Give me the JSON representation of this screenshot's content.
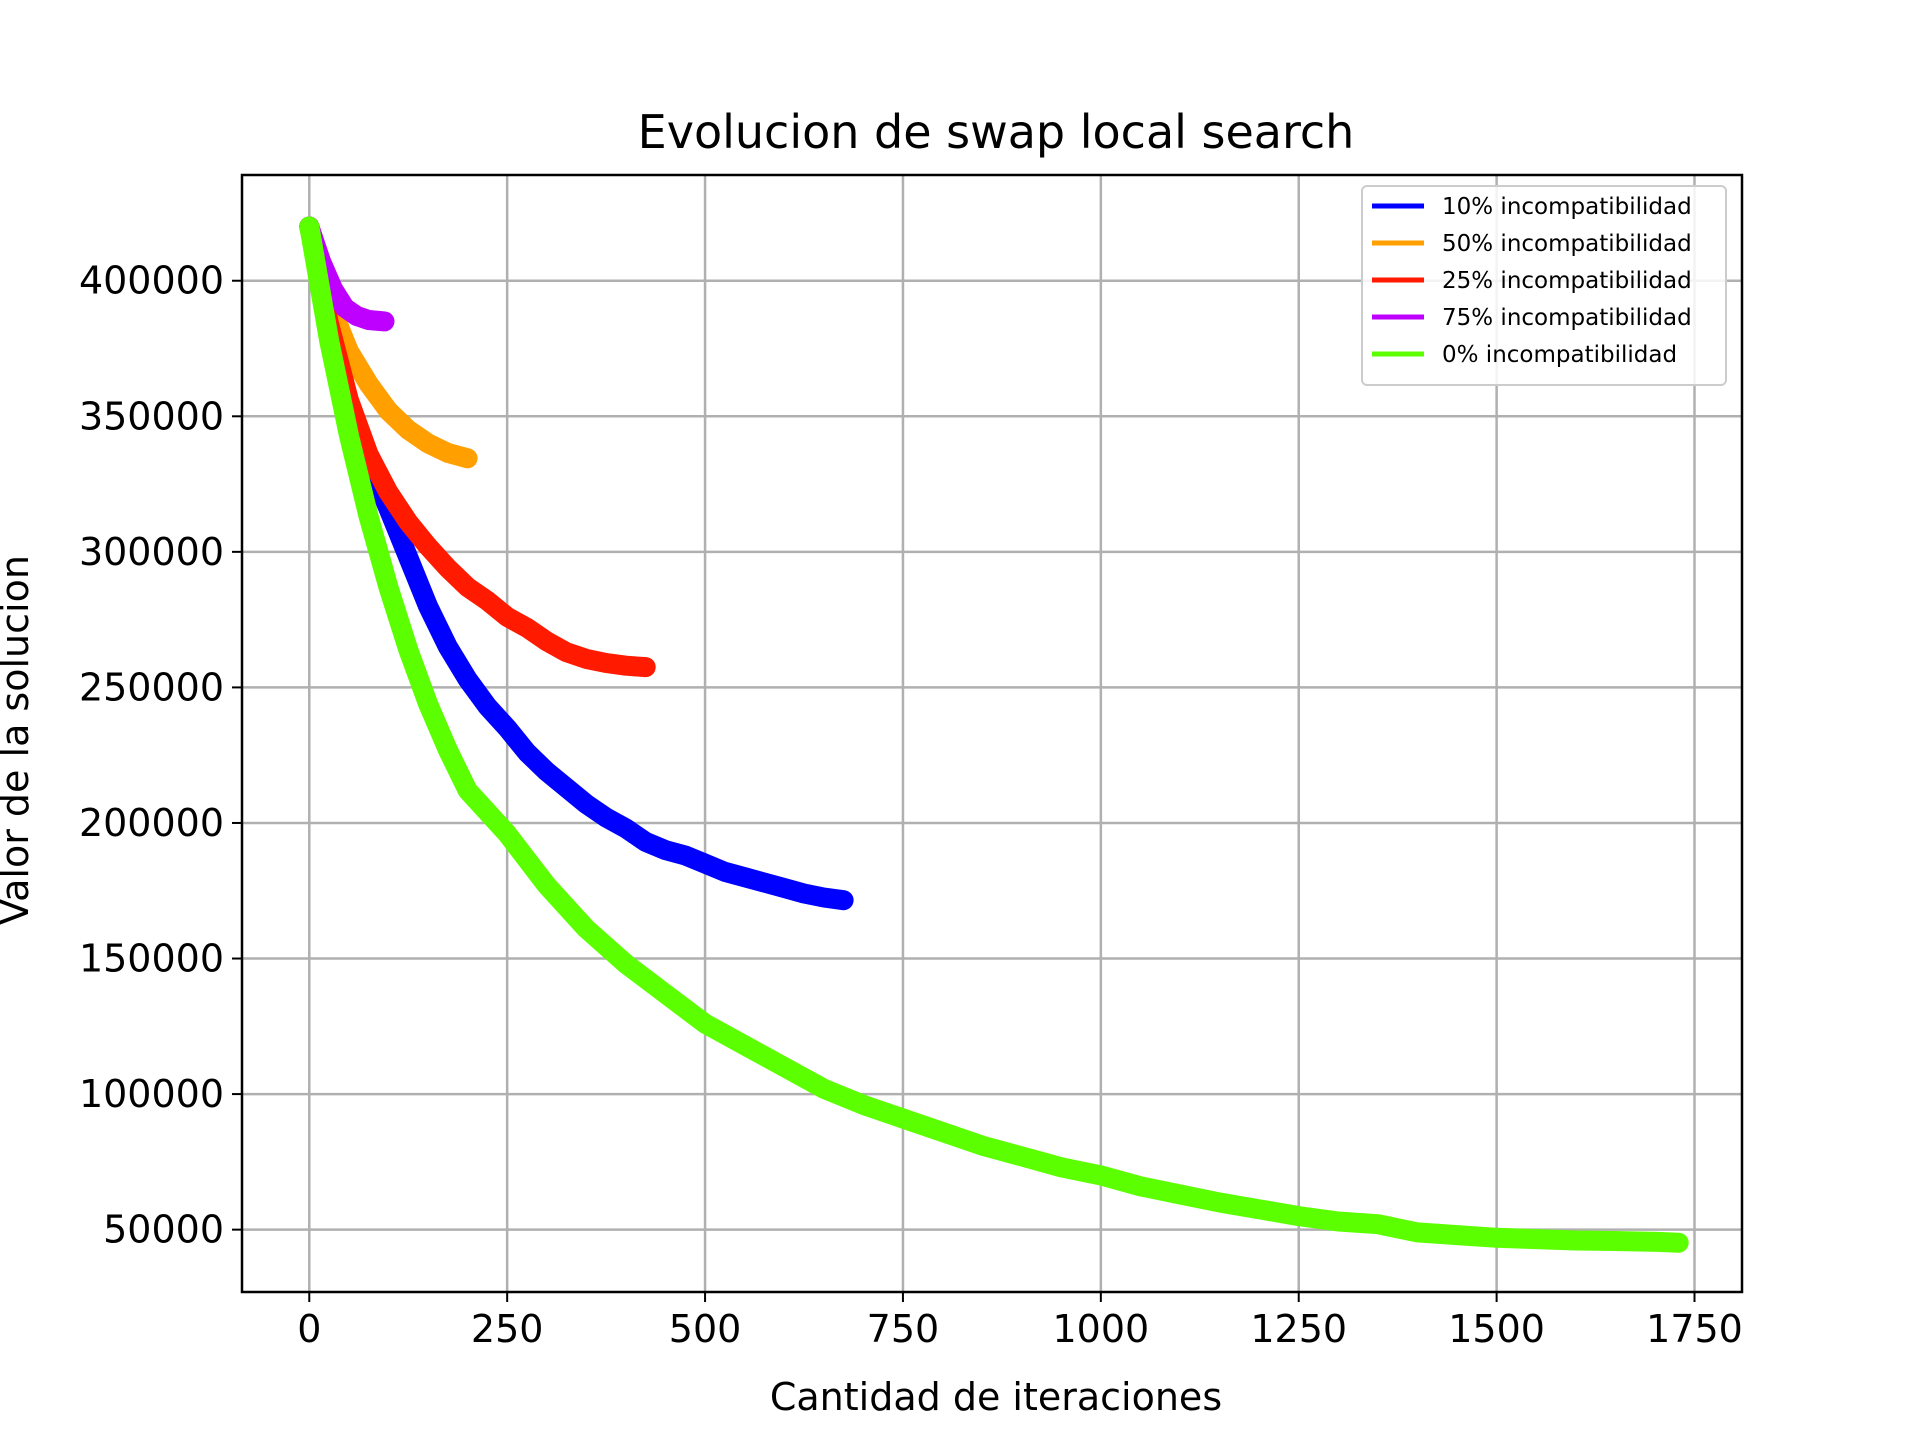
{
  "chart_data": {
    "type": "line",
    "title": "Evolucion de swap local search",
    "xlabel": "Cantidad de iteraciones",
    "ylabel": "Valor de la solucion",
    "xlim": [
      -85,
      1810
    ],
    "ylim": [
      27000,
      439000
    ],
    "xticks": [
      0,
      250,
      500,
      750,
      1000,
      1250,
      1500,
      1750
    ],
    "xtick_labels": [
      "0",
      "250",
      "500",
      "750",
      "1000",
      "1250",
      "1500",
      "1750"
    ],
    "yticks": [
      50000,
      100000,
      150000,
      200000,
      250000,
      300000,
      350000,
      400000
    ],
    "ytick_labels": [
      "50000",
      "100000",
      "150000",
      "200000",
      "250000",
      "300000",
      "350000",
      "400000"
    ],
    "grid": true,
    "legend_position": "top-right",
    "series": [
      {
        "name": "10% incompatibilidad",
        "color": "#0000ff",
        "x": [
          0,
          25,
          50,
          75,
          100,
          125,
          150,
          175,
          200,
          225,
          250,
          275,
          300,
          325,
          350,
          375,
          400,
          425,
          450,
          475,
          500,
          525,
          550,
          575,
          600,
          625,
          650,
          675
        ],
        "y": [
          420000,
          385000,
          355000,
          333000,
          316000,
          298000,
          280000,
          265000,
          253000,
          243000,
          235000,
          226000,
          219000,
          213000,
          207000,
          202000,
          198000,
          193000,
          190000,
          188000,
          185000,
          182000,
          180000,
          178000,
          176000,
          174000,
          172500,
          171500
        ]
      },
      {
        "name": "50% incompatibilidad",
        "color": "#ff9f00",
        "x": [
          0,
          25,
          50,
          75,
          100,
          125,
          150,
          175,
          200
        ],
        "y": [
          420000,
          392000,
          374000,
          362000,
          352000,
          345000,
          340000,
          336500,
          334500
        ]
      },
      {
        "name": "25% incompatibilidad",
        "color": "#ff1a00",
        "x": [
          0,
          25,
          50,
          75,
          100,
          125,
          150,
          175,
          200,
          225,
          250,
          275,
          300,
          325,
          350,
          375,
          400,
          425
        ],
        "y": [
          420000,
          384000,
          356000,
          336000,
          322000,
          311000,
          302000,
          294000,
          287000,
          282000,
          276000,
          272000,
          267000,
          263000,
          260500,
          259000,
          258000,
          257500
        ]
      },
      {
        "name": "75% incompatibilidad",
        "color": "#bd00ff",
        "x": [
          0,
          15,
          30,
          45,
          60,
          75,
          95
        ],
        "y": [
          420000,
          407000,
          397000,
          390000,
          387000,
          385500,
          385000
        ]
      },
      {
        "name": "0% incompatibilidad",
        "color": "#5cff00",
        "x": [
          0,
          25,
          50,
          75,
          100,
          125,
          150,
          175,
          200,
          250,
          300,
          350,
          400,
          450,
          500,
          550,
          600,
          650,
          700,
          750,
          800,
          850,
          900,
          950,
          1000,
          1050,
          1100,
          1150,
          1200,
          1250,
          1300,
          1350,
          1400,
          1450,
          1500,
          1550,
          1600,
          1650,
          1700,
          1730
        ],
        "y": [
          420000,
          378000,
          343000,
          313000,
          287000,
          264000,
          244000,
          227000,
          212000,
          196000,
          177000,
          161000,
          148000,
          137000,
          126000,
          118000,
          110000,
          102000,
          96000,
          91000,
          86000,
          81000,
          77000,
          73000,
          70000,
          66000,
          63000,
          60000,
          57500,
          55000,
          53000,
          52000,
          49000,
          48000,
          47000,
          46500,
          46000,
          45800,
          45500,
          45200
        ]
      }
    ]
  }
}
